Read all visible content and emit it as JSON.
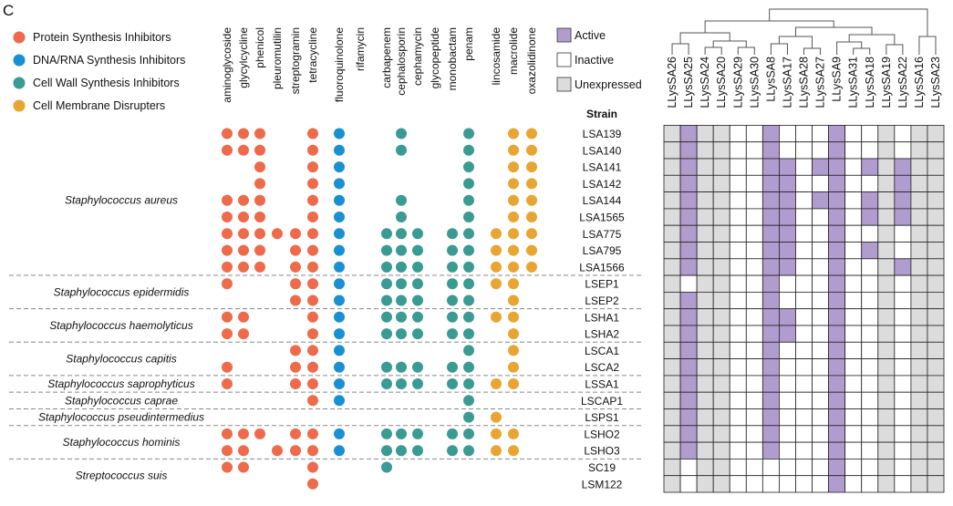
{
  "chart_data": {
    "type": "heatmap",
    "panel_label": "C",
    "category_legend": [
      {
        "label": "Protein Synthesis Inhibitors",
        "color": "#ee6a4a"
      },
      {
        "label": "DNA/RNA Synthesis Inhibitors",
        "color": "#1a90d4"
      },
      {
        "label": "Cell Wall Synthesis Inhibitors",
        "color": "#3a9a94"
      },
      {
        "label": "Cell Membrane Disrupters",
        "color": "#e9a531"
      }
    ],
    "drug_classes": [
      {
        "name": "aminoglycoside",
        "category": 0
      },
      {
        "name": "glycylcycline",
        "category": 0
      },
      {
        "name": "phenicol",
        "category": 0
      },
      {
        "name": "pleuromutilin",
        "category": 0
      },
      {
        "name": "streptogramin",
        "category": 0
      },
      {
        "name": "tetracycline",
        "category": 0
      },
      {
        "name": "fluoroquinolone",
        "category": 1
      },
      {
        "name": "rifamycin",
        "category": 1
      },
      {
        "name": "carbapenem",
        "category": 2
      },
      {
        "name": "cephalosporin",
        "category": 2
      },
      {
        "name": "cephamycin",
        "category": 2
      },
      {
        "name": "glycopeptide",
        "category": 2
      },
      {
        "name": "monobactam",
        "category": 2
      },
      {
        "name": "penam",
        "category": 2
      },
      {
        "name": "lincosamide",
        "category": 3
      },
      {
        "name": "macrolide",
        "category": 3
      },
      {
        "name": "oxazolidinone",
        "category": 3
      }
    ],
    "strain_header": "Strain",
    "strains": [
      "LSA139",
      "LSA140",
      "LSA141",
      "LSA142",
      "LSA144",
      "LSA1565",
      "LSA775",
      "LSA795",
      "LSA1566",
      "LSEP1",
      "LSEP2",
      "LSHA1",
      "LSHA2",
      "LSCA1",
      "LSCA2",
      "LSSA1",
      "LSCAP1",
      "LSPS1",
      "LSHO2",
      "LSHO3",
      "SC19",
      "LSM122"
    ],
    "species_groups": [
      {
        "name": "Staphylococcus aureus",
        "rows": [
          0,
          8
        ]
      },
      {
        "name": "Staphylococcus epidermidis",
        "rows": [
          9,
          10
        ]
      },
      {
        "name": "Staphylococcus haemolyticus",
        "rows": [
          11,
          12
        ]
      },
      {
        "name": "Staphylococcus capitis",
        "rows": [
          13,
          14
        ]
      },
      {
        "name": "Staphylococcus saprophyticus",
        "rows": [
          15,
          15
        ]
      },
      {
        "name": "Staphylococcus caprae",
        "rows": [
          16,
          16
        ]
      },
      {
        "name": "Staphylococcus pseudintermedius",
        "rows": [
          17,
          17
        ]
      },
      {
        "name": "Staphylococcus hominis",
        "rows": [
          18,
          19
        ]
      },
      {
        "name": "Streptococcus suis",
        "rows": [
          20,
          21
        ]
      }
    ],
    "resistance_matrix": [
      [
        1,
        1,
        1,
        0,
        0,
        1,
        1,
        0,
        0,
        1,
        0,
        0,
        0,
        1,
        0,
        1,
        1
      ],
      [
        1,
        1,
        1,
        0,
        0,
        1,
        1,
        0,
        0,
        1,
        0,
        0,
        0,
        1,
        0,
        1,
        1
      ],
      [
        0,
        0,
        1,
        0,
        0,
        1,
        1,
        0,
        0,
        0,
        0,
        0,
        0,
        1,
        0,
        1,
        1
      ],
      [
        0,
        0,
        1,
        0,
        0,
        1,
        1,
        0,
        0,
        0,
        0,
        0,
        0,
        1,
        0,
        1,
        1
      ],
      [
        1,
        1,
        1,
        0,
        0,
        1,
        1,
        0,
        0,
        1,
        0,
        0,
        0,
        1,
        0,
        1,
        1
      ],
      [
        1,
        1,
        1,
        0,
        0,
        1,
        1,
        0,
        0,
        1,
        0,
        0,
        0,
        1,
        0,
        1,
        1
      ],
      [
        1,
        1,
        1,
        1,
        1,
        1,
        1,
        0,
        1,
        1,
        1,
        0,
        1,
        1,
        1,
        1,
        1
      ],
      [
        1,
        1,
        1,
        0,
        1,
        1,
        1,
        0,
        1,
        1,
        1,
        0,
        1,
        1,
        1,
        1,
        1
      ],
      [
        1,
        1,
        1,
        0,
        1,
        1,
        1,
        0,
        1,
        1,
        1,
        0,
        1,
        1,
        1,
        1,
        1
      ],
      [
        1,
        0,
        0,
        0,
        1,
        1,
        1,
        0,
        1,
        1,
        1,
        0,
        1,
        1,
        1,
        1,
        0
      ],
      [
        0,
        0,
        0,
        0,
        1,
        1,
        1,
        0,
        1,
        1,
        1,
        0,
        1,
        1,
        0,
        1,
        0
      ],
      [
        1,
        1,
        0,
        0,
        0,
        1,
        1,
        0,
        1,
        1,
        1,
        0,
        1,
        1,
        1,
        1,
        0
      ],
      [
        1,
        1,
        0,
        0,
        0,
        1,
        1,
        0,
        1,
        1,
        1,
        0,
        1,
        1,
        0,
        1,
        0
      ],
      [
        0,
        0,
        0,
        0,
        1,
        1,
        1,
        0,
        0,
        0,
        0,
        0,
        0,
        1,
        0,
        1,
        0
      ],
      [
        1,
        0,
        0,
        0,
        1,
        1,
        1,
        0,
        1,
        1,
        1,
        0,
        1,
        1,
        0,
        1,
        0
      ],
      [
        1,
        0,
        0,
        0,
        1,
        1,
        1,
        0,
        1,
        1,
        1,
        0,
        1,
        1,
        1,
        1,
        0
      ],
      [
        0,
        0,
        0,
        0,
        0,
        1,
        1,
        0,
        0,
        0,
        0,
        0,
        0,
        1,
        0,
        0,
        0
      ],
      [
        0,
        0,
        0,
        0,
        0,
        0,
        0,
        0,
        0,
        0,
        0,
        0,
        0,
        1,
        1,
        0,
        0
      ],
      [
        1,
        1,
        1,
        0,
        1,
        1,
        1,
        0,
        1,
        1,
        1,
        0,
        1,
        1,
        1,
        1,
        0
      ],
      [
        1,
        1,
        0,
        1,
        1,
        1,
        1,
        0,
        1,
        1,
        1,
        0,
        1,
        1,
        1,
        1,
        0
      ],
      [
        1,
        1,
        0,
        0,
        0,
        1,
        0,
        0,
        1,
        0,
        0,
        0,
        0,
        0,
        0,
        0,
        0
      ],
      [
        0,
        0,
        0,
        0,
        0,
        1,
        0,
        0,
        0,
        0,
        0,
        0,
        0,
        0,
        0,
        0,
        0
      ]
    ],
    "lysin_legend": [
      {
        "label": "Active",
        "state": "A",
        "color": "#b19cd0"
      },
      {
        "label": "Inactive",
        "state": "I",
        "color": "#ffffff"
      },
      {
        "label": "Unexpressed",
        "state": "U",
        "color": "#dcdcdc"
      }
    ],
    "lysins": [
      "LLysSA26",
      "LLysSA25",
      "LLysSA24",
      "LLysSA20",
      "LLysSA29",
      "LLysSA30",
      "LLysSA8",
      "LLysSA17",
      "LLysSA28",
      "LLysSA27",
      "LLysSA9",
      "LLysSA31",
      "LLysSA18",
      "LLysSA19",
      "LLysSA22",
      "LLysSA16",
      "LLysSA23"
    ],
    "activity_matrix": [
      "UAUUIIAIIIAIIUIUU",
      "UAUUIIAIIIAIIUIUU",
      "UAUUIIAAIAAIAUAUU",
      "UAUUIIAAIIAIIUAUU",
      "UAUUIIAAIAAIAUAUU",
      "UAUUIIAAIIAIAUAUU",
      "UAUUIIAAIIAIIUIUU",
      "UAUUIIAAIIAIAUIUU",
      "UAUUIIAAIIAIIUAUU",
      "UIUUIIAIIIAIIUIUU",
      "UAUUIIAIIIAIIUIUU",
      "UAUUIIAAIIAIIUIUU",
      "UAUUIIAAIIAIIUIUU",
      "UAUUIIAIIIAIIUIUU",
      "UAUUIIAIIIAIIUIUU",
      "UAUUIIAIIIAIIUIUU",
      "UAUUIIAIIIAIIUIUU",
      "UAUUIIAIIIAIIUIUU",
      "UAUUIIAIIIAIIUIUU",
      "UAUUIIAIIIAIIUIUU",
      "UIUUIIIIIIAIIUIUU",
      "UIUUIIIIIIAIIUIUU"
    ]
  }
}
